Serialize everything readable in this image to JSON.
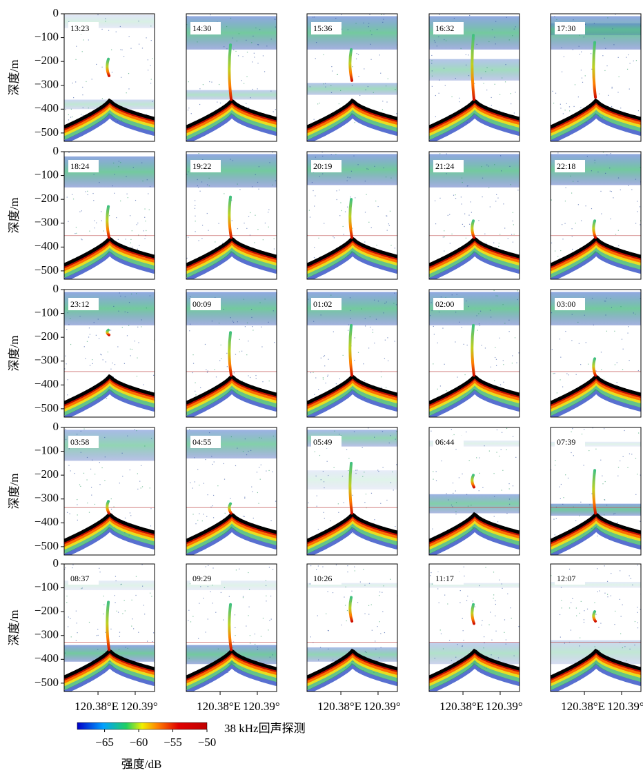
{
  "chart_data": {
    "type": "echogram",
    "ylabel": "深度/m",
    "ylim": [
      -535,
      0
    ],
    "yticks": [
      {
        "value": 0,
        "label": "0"
      },
      {
        "value": -100,
        "label": "−100"
      },
      {
        "value": -200,
        "label": "−200"
      },
      {
        "value": -300,
        "label": "−300"
      },
      {
        "value": -400,
        "label": "−400"
      },
      {
        "value": -500,
        "label": "−500"
      }
    ],
    "xlim": [
      120.3709,
      120.3952
    ],
    "xticks": [
      {
        "value": 120.38,
        "label": "120.38°E"
      },
      {
        "value": 120.39,
        "label": "120.39°"
      }
    ],
    "panels": [
      "13:23",
      "14:30",
      "15:36",
      "16:32",
      "17:30",
      "18:24",
      "19:22",
      "20:19",
      "21:24",
      "22:18",
      "23:12",
      "00:09",
      "01:02",
      "02:00",
      "03:00",
      "03:58",
      "04:55",
      "05:49",
      "06:44",
      "07:39",
      "08:37",
      "09:29",
      "10:26",
      "11:17",
      "12:07"
    ],
    "colorbar": {
      "title": "38 kHz回声探测",
      "label": "强度/dB",
      "lim": [
        -69,
        -50
      ],
      "ticks": [
        {
          "value": -65,
          "label": "−65"
        },
        {
          "value": -60,
          "label": "−60"
        },
        {
          "value": -55,
          "label": "−55"
        },
        {
          "value": -50,
          "label": "−50"
        }
      ]
    }
  }
}
